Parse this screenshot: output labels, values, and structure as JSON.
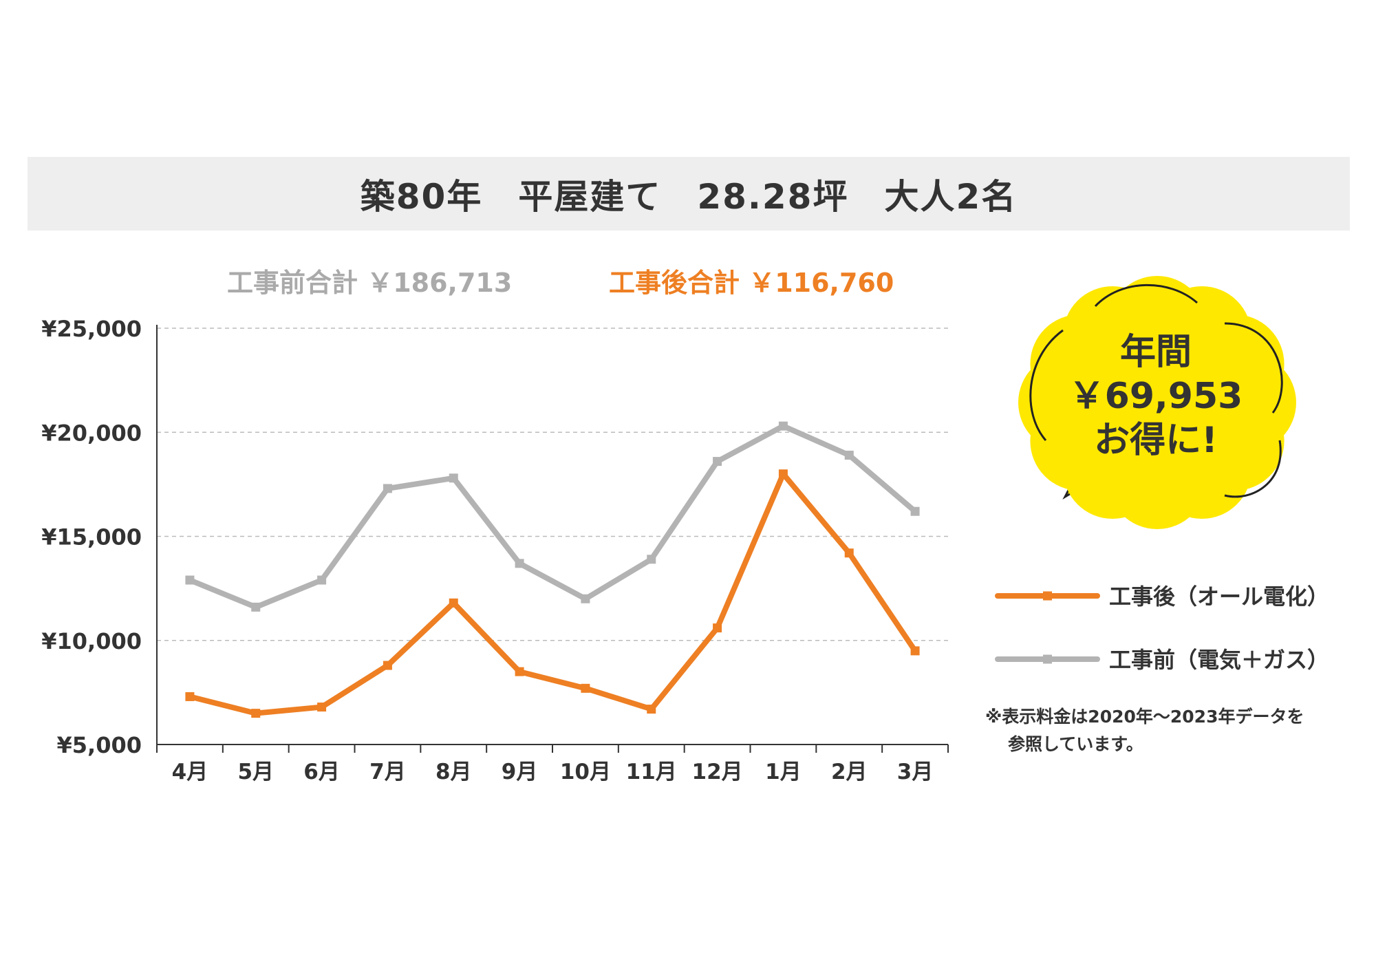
{
  "header": {
    "title": "築80年　平屋建て　28.28坪　大人2名"
  },
  "totals": {
    "before": "工事前合計 ￥186,713",
    "after": "工事後合計 ￥116,760"
  },
  "bubble": {
    "line1": "年間",
    "line2": "￥69,953",
    "line3": "お得に!"
  },
  "legend": {
    "after": "工事後（オール電化）",
    "before": "工事前（電気＋ガス）"
  },
  "note": {
    "line1": "※表示料金は2020年～2023年データを",
    "line2": "参照しています。"
  },
  "colors": {
    "after": "#ee7f23",
    "before": "#b3b3b3",
    "bubble": "#ffe800",
    "grid": "#bbbbbb",
    "axis": "#333333"
  },
  "chart_data": {
    "type": "line",
    "categories": [
      "4月",
      "5月",
      "6月",
      "7月",
      "8月",
      "9月",
      "10月",
      "11月",
      "12月",
      "1月",
      "2月",
      "3月"
    ],
    "ylim": [
      5000,
      25000
    ],
    "yticks": [
      5000,
      10000,
      15000,
      20000,
      25000
    ],
    "ytick_labels": [
      "¥5,000",
      "¥10,000",
      "¥15,000",
      "¥20,000",
      "¥25,000"
    ],
    "grid": "horizontal dashed",
    "legend_position": "right",
    "series": [
      {
        "name": "工事後（オール電化）",
        "color": "#ee7f23",
        "values": [
          7300,
          6500,
          6800,
          8800,
          11800,
          8500,
          7700,
          6700,
          10600,
          18000,
          14200,
          9500
        ]
      },
      {
        "name": "工事前（電気＋ガス）",
        "color": "#b3b3b3",
        "values": [
          12900,
          11600,
          12900,
          17300,
          17800,
          13700,
          12000,
          13900,
          18600,
          20300,
          18900,
          16200
        ]
      }
    ]
  }
}
